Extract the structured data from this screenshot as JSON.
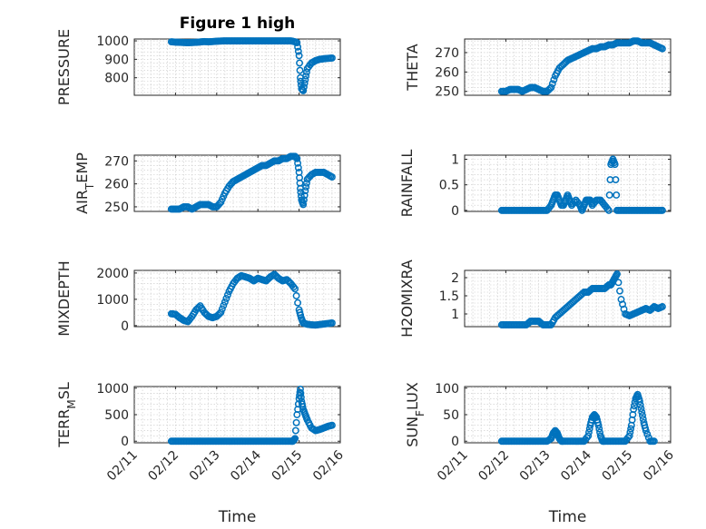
{
  "chart_data": [
    {
      "type": "scatter",
      "title": "Figure 1 high",
      "ylabel": "PRESSURE",
      "ylabel_sub": "",
      "xlabel": "",
      "show_xticklabels": false,
      "ylim": [
        705,
        1010
      ],
      "yticks": [
        800,
        900,
        1000
      ],
      "xlim": [
        0,
        5
      ],
      "x_tick_labels": [
        "02/11",
        "02/12",
        "02/13",
        "02/14",
        "02/15",
        "02/16"
      ],
      "x": [
        0.9,
        1.0,
        1.1,
        1.2,
        1.3,
        1.4,
        1.5,
        1.6,
        1.7,
        1.8,
        1.9,
        2.0,
        2.1,
        2.2,
        2.3,
        2.4,
        2.5,
        2.6,
        2.7,
        2.8,
        2.9,
        3.0,
        3.1,
        3.2,
        3.3,
        3.4,
        3.5,
        3.6,
        3.7,
        3.8,
        3.9,
        3.95,
        4.0,
        4.03,
        4.06,
        4.1,
        4.15,
        4.2,
        4.3,
        4.4,
        4.5,
        4.6,
        4.7,
        4.8
      ],
      "y": [
        995,
        993,
        992,
        991,
        990,
        991,
        992,
        994,
        996,
        995,
        996,
        998,
        999,
        1000,
        1000,
        1000,
        1000,
        1000,
        1000,
        1000,
        1000,
        1000,
        1000,
        1000,
        1000,
        1000,
        1000,
        1000,
        1000,
        1000,
        995,
        990,
        920,
        800,
        740,
        730,
        790,
        850,
        880,
        893,
        900,
        903,
        905,
        907
      ]
    },
    {
      "type": "scatter",
      "title": "",
      "ylabel": "THETA",
      "ylabel_sub": "",
      "xlabel": "",
      "show_xticklabels": false,
      "ylim": [
        248,
        277
      ],
      "yticks": [
        250,
        260,
        270
      ],
      "xlim": [
        0,
        5
      ],
      "x_tick_labels": [
        "02/11",
        "02/12",
        "02/13",
        "02/14",
        "02/15",
        "02/16"
      ],
      "x": [
        0.9,
        1.0,
        1.1,
        1.2,
        1.3,
        1.4,
        1.5,
        1.6,
        1.7,
        1.8,
        1.9,
        2.0,
        2.1,
        2.2,
        2.3,
        2.4,
        2.5,
        2.6,
        2.7,
        2.8,
        2.9,
        3.0,
        3.1,
        3.2,
        3.3,
        3.4,
        3.5,
        3.6,
        3.7,
        3.8,
        3.9,
        4.0,
        4.1,
        4.2,
        4.3,
        4.4,
        4.5,
        4.6,
        4.7,
        4.8
      ],
      "y": [
        250,
        250,
        251,
        251,
        251,
        250,
        251,
        252,
        252,
        251,
        250,
        250,
        252,
        258,
        262,
        264,
        266,
        267,
        268,
        269,
        270,
        271,
        272,
        272,
        273,
        273,
        274,
        274,
        275,
        275,
        275,
        275,
        276,
        276,
        275,
        275,
        275,
        274,
        273,
        272
      ]
    },
    {
      "type": "scatter",
      "title": "",
      "ylabel": "AIR",
      "ylabel_sub": "T",
      "ylabel_suffix": "EMP",
      "xlabel": "",
      "show_xticklabels": false,
      "ylim": [
        248,
        272.5
      ],
      "yticks": [
        250,
        260,
        270
      ],
      "xlim": [
        0,
        5
      ],
      "x_tick_labels": [
        "02/11",
        "02/12",
        "02/13",
        "02/14",
        "02/15",
        "02/16"
      ],
      "x": [
        0.9,
        1.0,
        1.1,
        1.2,
        1.3,
        1.4,
        1.5,
        1.6,
        1.7,
        1.8,
        1.9,
        2.0,
        2.1,
        2.2,
        2.3,
        2.4,
        2.5,
        2.6,
        2.7,
        2.8,
        2.9,
        3.0,
        3.1,
        3.2,
        3.3,
        3.4,
        3.5,
        3.6,
        3.7,
        3.8,
        3.9,
        3.95,
        4.0,
        4.03,
        4.06,
        4.1,
        4.15,
        4.2,
        4.3,
        4.4,
        4.5,
        4.6,
        4.7,
        4.8
      ],
      "y": [
        249,
        249,
        249,
        250,
        250,
        249,
        250,
        251,
        251,
        251,
        250,
        250,
        252,
        256,
        259,
        261,
        262,
        263,
        264,
        265,
        266,
        267,
        268,
        268,
        269,
        270,
        270,
        271,
        271,
        272,
        272,
        271,
        265,
        258,
        253,
        251,
        257,
        262,
        264,
        265,
        265,
        265,
        264,
        263
      ]
    },
    {
      "type": "scatter",
      "title": "",
      "ylabel": "RAINFALL",
      "ylabel_sub": "",
      "xlabel": "",
      "show_xticklabels": false,
      "ylim": [
        -0.02,
        1.08
      ],
      "yticks": [
        0,
        0.5,
        1
      ],
      "xlim": [
        0,
        5
      ],
      "x_tick_labels": [
        "02/11",
        "02/12",
        "02/13",
        "02/14",
        "02/15",
        "02/16"
      ],
      "x": [
        0.9,
        1.0,
        1.1,
        1.2,
        1.3,
        1.4,
        1.5,
        1.6,
        1.7,
        1.8,
        1.9,
        2.0,
        2.1,
        2.15,
        2.2,
        2.25,
        2.3,
        2.35,
        2.4,
        2.45,
        2.5,
        2.55,
        2.6,
        2.7,
        2.8,
        2.85,
        2.9,
        2.95,
        3.0,
        3.05,
        3.1,
        3.2,
        3.3,
        3.4,
        3.5,
        3.55,
        3.6,
        3.65,
        3.7,
        3.8,
        3.9,
        4.0,
        4.1,
        4.2,
        4.3,
        4.4,
        4.5,
        4.6,
        4.7,
        4.8
      ],
      "y": [
        0,
        0,
        0,
        0,
        0,
        0,
        0,
        0,
        0,
        0,
        0,
        0,
        0.1,
        0.2,
        0.3,
        0.3,
        0.2,
        0.1,
        0.1,
        0.2,
        0.3,
        0.2,
        0.1,
        0.2,
        0.1,
        0,
        0.1,
        0.2,
        0.2,
        0.2,
        0.1,
        0.2,
        0.2,
        0.1,
        0,
        0.9,
        1.0,
        0.9,
        0,
        0,
        0,
        0,
        0,
        0,
        0,
        0,
        0,
        0,
        0,
        0
      ]
    },
    {
      "type": "scatter",
      "title": "",
      "ylabel": "MIXDEPTH",
      "ylabel_sub": "",
      "xlabel": "",
      "show_xticklabels": false,
      "ylim": [
        -40,
        2100
      ],
      "yticks": [
        0,
        1000,
        2000
      ],
      "xlim": [
        0,
        5
      ],
      "x_tick_labels": [
        "02/11",
        "02/12",
        "02/13",
        "02/14",
        "02/15",
        "02/16"
      ],
      "x": [
        0.9,
        1.0,
        1.1,
        1.2,
        1.3,
        1.4,
        1.5,
        1.6,
        1.7,
        1.8,
        1.9,
        2.0,
        2.1,
        2.2,
        2.3,
        2.4,
        2.5,
        2.6,
        2.7,
        2.8,
        2.9,
        3.0,
        3.1,
        3.2,
        3.3,
        3.4,
        3.5,
        3.6,
        3.7,
        3.8,
        3.9,
        4.0,
        4.05,
        4.1,
        4.2,
        4.3,
        4.4,
        4.5,
        4.6,
        4.7,
        4.8
      ],
      "y": [
        450,
        430,
        300,
        200,
        150,
        350,
        600,
        750,
        500,
        350,
        300,
        350,
        500,
        900,
        1300,
        1600,
        1800,
        1900,
        1850,
        1800,
        1700,
        1800,
        1750,
        1700,
        1850,
        1950,
        1800,
        1700,
        1750,
        1600,
        1400,
        600,
        300,
        100,
        50,
        30,
        20,
        40,
        60,
        80,
        100
      ]
    },
    {
      "type": "scatter",
      "title": "",
      "ylabel": "H2OMIXRA",
      "ylabel_sub": "",
      "xlabel": "",
      "show_xticklabels": false,
      "ylim": [
        0.65,
        2.2
      ],
      "yticks": [
        1,
        1.5,
        2
      ],
      "xlim": [
        0,
        5
      ],
      "x_tick_labels": [
        "02/11",
        "02/12",
        "02/13",
        "02/14",
        "02/15",
        "02/16"
      ],
      "x": [
        0.9,
        1.0,
        1.1,
        1.2,
        1.3,
        1.4,
        1.5,
        1.6,
        1.7,
        1.8,
        1.9,
        2.0,
        2.1,
        2.2,
        2.3,
        2.4,
        2.5,
        2.6,
        2.7,
        2.8,
        2.9,
        3.0,
        3.1,
        3.2,
        3.3,
        3.4,
        3.5,
        3.55,
        3.6,
        3.65,
        3.7,
        3.8,
        3.9,
        4.0,
        4.1,
        4.2,
        4.3,
        4.4,
        4.5,
        4.6,
        4.7,
        4.8
      ],
      "y": [
        0.7,
        0.7,
        0.7,
        0.7,
        0.7,
        0.7,
        0.7,
        0.8,
        0.8,
        0.8,
        0.7,
        0.7,
        0.7,
        0.9,
        1.0,
        1.1,
        1.2,
        1.3,
        1.4,
        1.5,
        1.6,
        1.6,
        1.7,
        1.7,
        1.7,
        1.7,
        1.8,
        1.8,
        1.9,
        2.0,
        2.1,
        1.4,
        1.0,
        0.95,
        1.0,
        1.05,
        1.1,
        1.15,
        1.1,
        1.2,
        1.15,
        1.2
      ]
    },
    {
      "type": "scatter",
      "title": "",
      "ylabel": "TERR",
      "ylabel_sub": "M",
      "ylabel_suffix": "SL",
      "xlabel": "Time",
      "show_xticklabels": true,
      "ylim": [
        -30,
        1030
      ],
      "yticks": [
        0,
        500,
        1000
      ],
      "xlim": [
        0,
        5
      ],
      "x_tick_labels": [
        "02/11",
        "02/12",
        "02/13",
        "02/14",
        "02/15",
        "02/16"
      ],
      "x": [
        0.9,
        1.0,
        1.1,
        1.2,
        1.3,
        1.4,
        1.5,
        1.6,
        1.7,
        1.8,
        1.9,
        2.0,
        2.1,
        2.2,
        2.3,
        2.4,
        2.5,
        2.6,
        2.7,
        2.8,
        2.9,
        3.0,
        3.1,
        3.2,
        3.3,
        3.4,
        3.5,
        3.6,
        3.7,
        3.8,
        3.85,
        3.9,
        3.95,
        4.0,
        4.03,
        4.06,
        4.1,
        4.15,
        4.2,
        4.3,
        4.4,
        4.5,
        4.6,
        4.7,
        4.8
      ],
      "y": [
        0,
        0,
        0,
        0,
        0,
        0,
        0,
        0,
        0,
        0,
        0,
        0,
        0,
        0,
        0,
        0,
        0,
        0,
        0,
        0,
        0,
        0,
        0,
        0,
        0,
        0,
        0,
        0,
        0,
        0,
        0,
        50,
        500,
        800,
        980,
        750,
        600,
        500,
        400,
        250,
        200,
        220,
        250,
        280,
        300
      ]
    },
    {
      "type": "scatter",
      "title": "",
      "ylabel": "SUN",
      "ylabel_sub": "F",
      "ylabel_suffix": "LUX",
      "xlabel": "Time",
      "show_xticklabels": true,
      "ylim": [
        -3,
        103
      ],
      "yticks": [
        0,
        50,
        100
      ],
      "xlim": [
        0,
        5
      ],
      "x_tick_labels": [
        "02/11",
        "02/12",
        "02/13",
        "02/14",
        "02/15",
        "02/16"
      ],
      "x": [
        0.9,
        1.0,
        1.1,
        1.2,
        1.3,
        1.4,
        1.5,
        1.6,
        1.7,
        1.8,
        1.9,
        2.0,
        2.1,
        2.15,
        2.2,
        2.25,
        2.3,
        2.35,
        2.4,
        2.5,
        2.6,
        2.7,
        2.8,
        2.9,
        3.0,
        3.05,
        3.1,
        3.15,
        3.2,
        3.25,
        3.3,
        3.35,
        3.4,
        3.5,
        3.6,
        3.7,
        3.8,
        3.9,
        4.0,
        4.05,
        4.1,
        4.15,
        4.2,
        4.25,
        4.3,
        4.35,
        4.4,
        4.5,
        4.6
      ],
      "y": [
        0,
        0,
        0,
        0,
        0,
        0,
        0,
        0,
        0,
        0,
        0,
        0,
        5,
        15,
        20,
        15,
        5,
        0,
        0,
        0,
        0,
        0,
        0,
        0,
        10,
        30,
        45,
        50,
        45,
        30,
        10,
        0,
        0,
        0,
        0,
        0,
        0,
        0,
        10,
        30,
        60,
        80,
        88,
        75,
        55,
        35,
        20,
        0,
        0
      ]
    }
  ],
  "colors": {
    "marker": "#0072BD",
    "axis": "#262626",
    "grid": "#c8c8c8"
  }
}
